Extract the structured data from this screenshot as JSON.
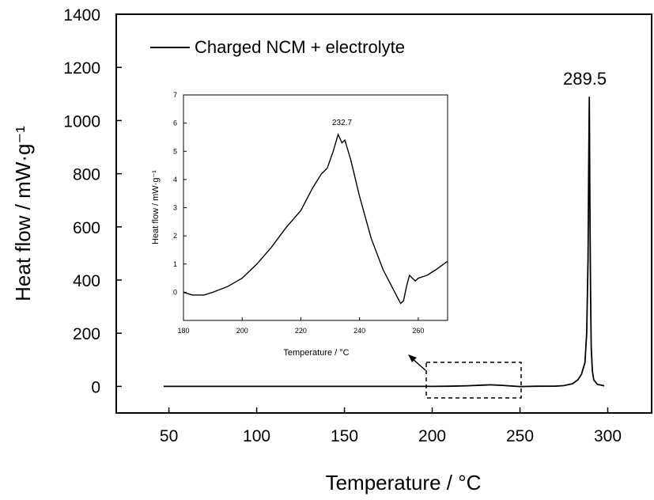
{
  "chart_data": [
    {
      "type": "line",
      "xlabel": "Temperature / °C",
      "ylabel": "Heat flow / mW·g⁻¹",
      "xlim": [
        20,
        325
      ],
      "ylim": [
        -100,
        1400
      ],
      "xticks": [
        "50",
        "100",
        "150",
        "200",
        "250",
        "300"
      ],
      "yticks": [
        "0",
        "200",
        "400",
        "600",
        "800",
        "1000",
        "1200",
        "1400"
      ],
      "legend": {
        "position": "top-left",
        "entries": [
          "Charged NCM + electrolyte"
        ]
      },
      "annotations": [
        "289.5"
      ],
      "grid": false,
      "series": [
        {
          "name": "Charged NCM + electrolyte",
          "color": "#000000",
          "x": [
            47,
            100,
            150,
            200,
            210,
            220,
            230,
            233,
            240,
            250,
            260,
            270,
            275,
            280,
            283,
            285,
            287,
            288,
            288.8,
            289.2,
            289.5,
            289.8,
            290.2,
            290.6,
            291.2,
            292,
            294,
            298
          ],
          "y": [
            0,
            0,
            0,
            0,
            0.5,
            2.5,
            5,
            6,
            4,
            -0.5,
            0.5,
            1,
            3,
            10,
            25,
            45,
            90,
            200,
            480,
            850,
            1090,
            700,
            350,
            150,
            60,
            25,
            8,
            2
          ]
        }
      ]
    },
    {
      "type": "line",
      "xlabel": "Temperature / °C",
      "ylabel": "Heat flow / mW·g⁻¹",
      "xlim": [
        180,
        270
      ],
      "ylim": [
        -1,
        7
      ],
      "xticks": [
        "180",
        "200",
        "220",
        "240",
        "260"
      ],
      "yticks": [
        "0",
        "1",
        "2",
        "3",
        "4",
        "5",
        "6",
        "7"
      ],
      "annotations": [
        "232.7"
      ],
      "grid": false,
      "series": [
        {
          "color": "#000000",
          "x": [
            180,
            183,
            187,
            190,
            195,
            200,
            205,
            210,
            215,
            220,
            224,
            227,
            229,
            231,
            232.7,
            234,
            235,
            237,
            240,
            244,
            248,
            252,
            254,
            255,
            256,
            257,
            258,
            259,
            260,
            263,
            266,
            270
          ],
          "y": [
            0,
            -0.1,
            -0.1,
            0,
            0.2,
            0.5,
            1.0,
            1.6,
            2.3,
            2.9,
            3.7,
            4.2,
            4.4,
            5.0,
            5.6,
            5.3,
            5.4,
            4.7,
            3.4,
            1.9,
            0.8,
            0.0,
            -0.4,
            -0.3,
            0.2,
            0.6,
            0.5,
            0.4,
            0.5,
            0.6,
            0.8,
            1.1
          ]
        }
      ]
    }
  ]
}
